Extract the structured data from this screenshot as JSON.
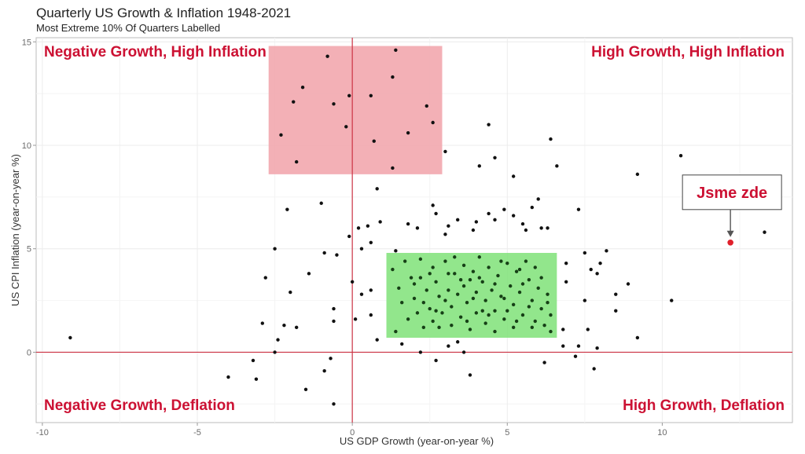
{
  "chart_data": {
    "type": "scatter",
    "title": "Quarterly US Growth & Inflation 1948-2021",
    "subtitle": "Most Extreme 10% Of Quarters Labelled",
    "xlabel": "US GDP Growth (year-on-year %)",
    "ylabel": "US CPI Inflation (year-on-year %)",
    "xlim": [
      -10.2,
      14.2
    ],
    "ylim": [
      -3.4,
      15.2
    ],
    "xticks": [
      -10,
      -5,
      0,
      5,
      10
    ],
    "yticks": [
      0,
      5,
      10,
      15
    ],
    "grid": true,
    "colors": {
      "point": "#111111",
      "highlight": "#e0202b",
      "reference_line": "#cc3344",
      "quadrant_label": "#cc1133",
      "red_box": "#f2a7ae",
      "green_box": "#86e37f",
      "panel_border": "#bbbbbb",
      "grid": "#ececec"
    },
    "quadrant_labels": [
      {
        "text": "Negative Growth, High Inflation",
        "position": "top-left"
      },
      {
        "text": "High Growth, High Inflation",
        "position": "top-right"
      },
      {
        "text": "Negative Growth, Deflation",
        "position": "bottom-left"
      },
      {
        "text": "High Growth, Deflation",
        "position": "bottom-right"
      }
    ],
    "shaded_regions": [
      {
        "name": "red",
        "x": [
          -2.7,
          2.9
        ],
        "y": [
          8.6,
          14.8
        ],
        "color": "#f2a7ae"
      },
      {
        "name": "green",
        "x": [
          1.1,
          6.6
        ],
        "y": [
          0.7,
          4.8
        ],
        "color": "#86e37f"
      }
    ],
    "callout": {
      "text": "Jsme zde",
      "x": 12.2,
      "y": 5.3
    },
    "points": [
      [
        -9.1,
        0.7
      ],
      [
        -0.8,
        14.3
      ],
      [
        0.6,
        12.4
      ],
      [
        1.4,
        14.6
      ],
      [
        1.3,
        13.3
      ],
      [
        -1.6,
        12.8
      ],
      [
        -1.9,
        12.1
      ],
      [
        -0.6,
        12.0
      ],
      [
        2.4,
        11.9
      ],
      [
        2.6,
        11.1
      ],
      [
        -0.2,
        10.9
      ],
      [
        -0.1,
        12.4
      ],
      [
        1.8,
        10.6
      ],
      [
        -2.3,
        10.5
      ],
      [
        0.7,
        10.2
      ],
      [
        -1.8,
        9.2
      ],
      [
        1.3,
        8.9
      ],
      [
        3.0,
        9.7
      ],
      [
        4.4,
        11.0
      ],
      [
        -2.1,
        6.9
      ],
      [
        -1.0,
        7.2
      ],
      [
        -2.5,
        5.0
      ],
      [
        -2.8,
        3.6
      ],
      [
        -1.4,
        3.8
      ],
      [
        -2.0,
        2.9
      ],
      [
        -1.8,
        1.2
      ],
      [
        -2.2,
        1.3
      ],
      [
        -2.9,
        1.4
      ],
      [
        -2.4,
        0.6
      ],
      [
        -2.5,
        0.0
      ],
      [
        -0.9,
        4.8
      ],
      [
        -0.5,
        4.7
      ],
      [
        -0.6,
        2.1
      ],
      [
        -0.6,
        1.5
      ],
      [
        -0.7,
        -0.3
      ],
      [
        -0.9,
        -0.9
      ],
      [
        -1.5,
        -1.8
      ],
      [
        -3.2,
        -0.4
      ],
      [
        -3.1,
        -1.3
      ],
      [
        -4.0,
        -1.2
      ],
      [
        -0.6,
        -2.5
      ],
      [
        0.8,
        7.9
      ],
      [
        0.2,
        6.0
      ],
      [
        0.5,
        6.1
      ],
      [
        0.6,
        5.3
      ],
      [
        -0.1,
        5.6
      ],
      [
        0.3,
        5.0
      ],
      [
        0.9,
        6.3
      ],
      [
        1.4,
        4.9
      ],
      [
        0.0,
        3.4
      ],
      [
        0.3,
        2.8
      ],
      [
        0.6,
        3.0
      ],
      [
        0.1,
        1.6
      ],
      [
        0.6,
        1.8
      ],
      [
        0.8,
        0.6
      ],
      [
        1.6,
        0.4
      ],
      [
        2.2,
        0.0
      ],
      [
        2.7,
        -0.4
      ],
      [
        3.1,
        0.3
      ],
      [
        3.4,
        0.5
      ],
      [
        3.8,
        -1.1
      ],
      [
        3.6,
        0.0
      ],
      [
        1.8,
        6.2
      ],
      [
        2.1,
        6.0
      ],
      [
        2.6,
        7.1
      ],
      [
        2.7,
        6.7
      ],
      [
        3.1,
        6.1
      ],
      [
        3.0,
        5.7
      ],
      [
        3.4,
        6.4
      ],
      [
        3.9,
        5.9
      ],
      [
        4.1,
        9.0
      ],
      [
        4.6,
        9.4
      ],
      [
        5.2,
        8.5
      ],
      [
        5.2,
        6.6
      ],
      [
        4.9,
        6.9
      ],
      [
        4.6,
        6.4
      ],
      [
        4.4,
        6.7
      ],
      [
        5.5,
        6.2
      ],
      [
        5.8,
        7.0
      ],
      [
        6.0,
        7.4
      ],
      [
        6.3,
        6.0
      ],
      [
        6.4,
        10.3
      ],
      [
        6.6,
        9.0
      ],
      [
        6.1,
        6.0
      ],
      [
        5.6,
        5.9
      ],
      [
        4.0,
        6.3
      ],
      [
        7.3,
        6.9
      ],
      [
        6.9,
        4.3
      ],
      [
        7.5,
        4.8
      ],
      [
        7.7,
        4.0
      ],
      [
        8.0,
        4.3
      ],
      [
        8.2,
        4.9
      ],
      [
        7.9,
        3.8
      ],
      [
        6.9,
        3.4
      ],
      [
        7.5,
        2.5
      ],
      [
        7.6,
        1.1
      ],
      [
        8.5,
        2.8
      ],
      [
        8.5,
        2.0
      ],
      [
        7.3,
        0.3
      ],
      [
        7.9,
        0.2
      ],
      [
        7.2,
        -0.2
      ],
      [
        7.8,
        -0.8
      ],
      [
        6.2,
        -0.5
      ],
      [
        6.8,
        0.3
      ],
      [
        6.8,
        1.1
      ],
      [
        8.9,
        3.3
      ],
      [
        9.2,
        8.6
      ],
      [
        9.2,
        0.7
      ],
      [
        10.3,
        2.5
      ],
      [
        10.6,
        9.5
      ],
      [
        13.3,
        5.8
      ]
    ],
    "cluster_points": [
      [
        1.3,
        4.0
      ],
      [
        1.5,
        3.1
      ],
      [
        1.6,
        2.4
      ],
      [
        1.8,
        1.6
      ],
      [
        1.9,
        3.6
      ],
      [
        2.0,
        2.6
      ],
      [
        2.1,
        1.9
      ],
      [
        2.2,
        4.5
      ],
      [
        2.3,
        1.2
      ],
      [
        2.4,
        3.0
      ],
      [
        2.5,
        2.1
      ],
      [
        2.6,
        4.1
      ],
      [
        2.6,
        1.5
      ],
      [
        2.7,
        3.4
      ],
      [
        2.8,
        2.7
      ],
      [
        2.9,
        1.9
      ],
      [
        3.0,
        4.4
      ],
      [
        3.1,
        3.0
      ],
      [
        3.2,
        2.2
      ],
      [
        3.2,
        1.3
      ],
      [
        3.3,
        3.8
      ],
      [
        3.4,
        2.8
      ],
      [
        3.5,
        1.7
      ],
      [
        3.6,
        4.2
      ],
      [
        3.6,
        3.2
      ],
      [
        3.7,
        2.4
      ],
      [
        3.8,
        1.1
      ],
      [
        3.9,
        3.9
      ],
      [
        4.0,
        2.9
      ],
      [
        4.0,
        1.9
      ],
      [
        4.1,
        4.6
      ],
      [
        4.2,
        3.4
      ],
      [
        4.3,
        2.5
      ],
      [
        4.3,
        1.4
      ],
      [
        4.4,
        4.1
      ],
      [
        4.5,
        3.0
      ],
      [
        4.6,
        2.0
      ],
      [
        4.6,
        1.0
      ],
      [
        4.7,
        3.7
      ],
      [
        4.8,
        2.7
      ],
      [
        4.9,
        1.6
      ],
      [
        5.0,
        4.3
      ],
      [
        5.1,
        3.2
      ],
      [
        5.2,
        2.3
      ],
      [
        5.2,
        1.2
      ],
      [
        5.3,
        3.9
      ],
      [
        5.4,
        2.9
      ],
      [
        5.5,
        1.8
      ],
      [
        5.6,
        4.4
      ],
      [
        5.7,
        3.5
      ],
      [
        5.8,
        2.5
      ],
      [
        5.9,
        1.5
      ],
      [
        6.0,
        3.1
      ],
      [
        6.1,
        2.1
      ],
      [
        6.2,
        1.3
      ],
      [
        6.3,
        2.8
      ],
      [
        6.4,
        1.8
      ],
      [
        6.4,
        1.0
      ],
      [
        1.4,
        1.0
      ],
      [
        1.7,
        4.4
      ],
      [
        2.0,
        3.3
      ],
      [
        2.3,
        2.4
      ],
      [
        2.5,
        3.8
      ],
      [
        2.8,
        1.2
      ],
      [
        3.0,
        2.5
      ],
      [
        3.3,
        4.6
      ],
      [
        3.5,
        3.5
      ],
      [
        3.7,
        1.5
      ],
      [
        3.9,
        2.6
      ],
      [
        4.1,
        3.6
      ],
      [
        4.4,
        1.8
      ],
      [
        4.6,
        3.3
      ],
      [
        4.8,
        4.4
      ],
      [
        5.0,
        2.0
      ],
      [
        5.3,
        1.5
      ],
      [
        5.5,
        3.3
      ],
      [
        5.7,
        2.2
      ],
      [
        5.9,
        4.1
      ],
      [
        6.1,
        3.6
      ],
      [
        6.3,
        2.4
      ],
      [
        2.2,
        3.6
      ],
      [
        2.7,
        2.0
      ],
      [
        3.1,
        3.8
      ],
      [
        3.8,
        3.5
      ],
      [
        4.2,
        2.0
      ],
      [
        4.9,
        2.6
      ],
      [
        5.4,
        4.0
      ],
      [
        5.8,
        1.2
      ]
    ]
  }
}
